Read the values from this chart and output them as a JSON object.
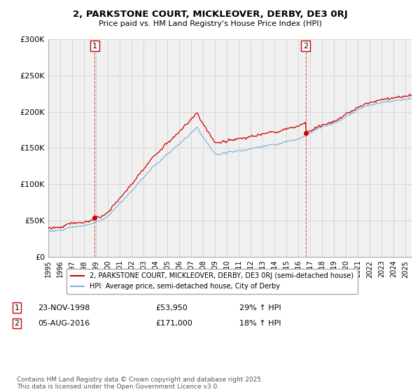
{
  "title_line1": "2, PARKSTONE COURT, MICKLEOVER, DERBY, DE3 0RJ",
  "title_line2": "Price paid vs. HM Land Registry's House Price Index (HPI)",
  "legend_label1": "2, PARKSTONE COURT, MICKLEOVER, DERBY, DE3 0RJ (semi-detached house)",
  "legend_label2": "HPI: Average price, semi-detached house, City of Derby",
  "annotation1_label": "1",
  "annotation1_date": "23-NOV-1998",
  "annotation1_price": "£53,950",
  "annotation1_hpi": "29% ↑ HPI",
  "annotation2_label": "2",
  "annotation2_date": "05-AUG-2016",
  "annotation2_price": "£171,000",
  "annotation2_hpi": "18% ↑ HPI",
  "footer": "Contains HM Land Registry data © Crown copyright and database right 2025.\nThis data is licensed under the Open Government Licence v3.0.",
  "sale1_year": 1998.9,
  "sale1_price": 53950,
  "sale2_year": 2016.6,
  "sale2_price": 171000,
  "ylim": [
    0,
    300000
  ],
  "xlim_start": 1995.0,
  "xlim_end": 2025.5,
  "yticks": [
    0,
    50000,
    100000,
    150000,
    200000,
    250000,
    300000
  ],
  "ytick_labels": [
    "£0",
    "£50K",
    "£100K",
    "£150K",
    "£200K",
    "£250K",
    "£300K"
  ],
  "xticks": [
    1995,
    1996,
    1997,
    1998,
    1999,
    2000,
    2001,
    2002,
    2003,
    2004,
    2005,
    2006,
    2007,
    2008,
    2009,
    2010,
    2011,
    2012,
    2013,
    2014,
    2015,
    2016,
    2017,
    2018,
    2019,
    2020,
    2021,
    2022,
    2023,
    2024,
    2025
  ],
  "line_color_price": "#cc0000",
  "line_color_hpi": "#7db0d4",
  "sale_marker_color": "#cc0000",
  "vline_color": "#cc0000",
  "grid_color": "#cccccc",
  "bg_color": "#ffffff",
  "plot_bg_color": "#f0f0f0"
}
